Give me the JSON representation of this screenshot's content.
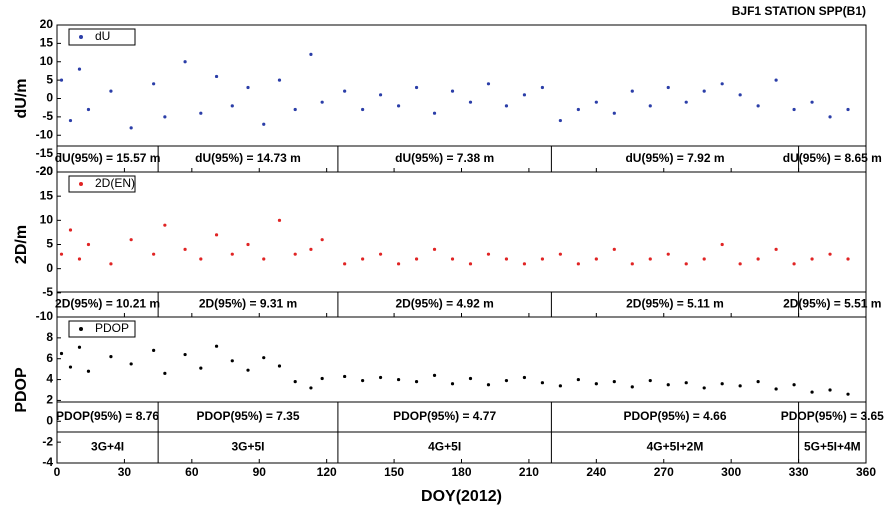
{
  "chart_data": [
    {
      "type": "scatter",
      "title": "BJF1 STATION SPP(B1)",
      "ylabel": "dU/m",
      "xlim": [
        0,
        360
      ],
      "ylim": [
        -20,
        20
      ],
      "yticks": [
        -20,
        -15,
        -10,
        -5,
        0,
        5,
        10,
        15,
        20
      ],
      "dividers": [
        45,
        125,
        220,
        330
      ],
      "annotations": [
        "dU(95%) = 15.57 m",
        "dU(95%) = 14.73 m",
        "dU(95%) = 7.38 m",
        "dU(95%) = 7.92 m",
        "dU(95%) = 8.65 m"
      ],
      "series": [
        {
          "name": "dU",
          "color": "#2b3ea8",
          "x": [
            2,
            6,
            10,
            14,
            24,
            33,
            43,
            48,
            57,
            64,
            71,
            78,
            85,
            92,
            99,
            106,
            113,
            118,
            128,
            136,
            144,
            152,
            160,
            168,
            176,
            184,
            192,
            200,
            208,
            216,
            224,
            232,
            240,
            248,
            256,
            264,
            272,
            280,
            288,
            296,
            304,
            312,
            320,
            328,
            336,
            344,
            352
          ],
          "values": [
            5,
            -6,
            8,
            -3,
            2,
            -8,
            4,
            -5,
            10,
            -4,
            6,
            -2,
            3,
            -7,
            5,
            -3,
            12,
            -1,
            2,
            -3,
            1,
            -2,
            3,
            -4,
            2,
            -1,
            4,
            -2,
            1,
            3,
            -6,
            -3,
            -1,
            -4,
            2,
            -2,
            3,
            -1,
            2,
            4,
            1,
            -2,
            5,
            -3,
            -1,
            -5,
            -3
          ]
        }
      ]
    },
    {
      "type": "scatter",
      "ylabel": "2D/m",
      "xlim": [
        0,
        360
      ],
      "ylim": [
        -10,
        20
      ],
      "yticks": [
        -10,
        -5,
        0,
        5,
        10,
        15,
        20
      ],
      "dividers": [
        45,
        125,
        220,
        330
      ],
      "annotations": [
        "2D(95%) = 10.21 m",
        "2D(95%) = 9.31 m",
        "2D(95%) = 4.92 m",
        "2D(95%) = 5.11 m",
        "2D(95%) = 5.51 m"
      ],
      "series": [
        {
          "name": "2D(EN)",
          "color": "#e02424",
          "x": [
            2,
            6,
            10,
            14,
            24,
            33,
            43,
            48,
            57,
            64,
            71,
            78,
            85,
            92,
            99,
            106,
            113,
            118,
            128,
            136,
            144,
            152,
            160,
            168,
            176,
            184,
            192,
            200,
            208,
            216,
            224,
            232,
            240,
            248,
            256,
            264,
            272,
            280,
            288,
            296,
            304,
            312,
            320,
            328,
            336,
            344,
            352
          ],
          "values": [
            3,
            8,
            2,
            5,
            1,
            6,
            3,
            9,
            4,
            2,
            7,
            3,
            5,
            2,
            10,
            3,
            4,
            6,
            1,
            2,
            3,
            1,
            2,
            4,
            2,
            1,
            3,
            2,
            1,
            2,
            3,
            1,
            2,
            4,
            1,
            2,
            3,
            1,
            2,
            5,
            1,
            2,
            4,
            1,
            2,
            3,
            2
          ]
        }
      ]
    },
    {
      "type": "scatter",
      "ylabel": "PDOP",
      "xlabel": "DOY(2012)",
      "xlim": [
        0,
        360
      ],
      "xticks": [
        0,
        30,
        60,
        90,
        120,
        150,
        180,
        210,
        240,
        270,
        300,
        330,
        360
      ],
      "ylim": [
        -4,
        10
      ],
      "yticks": [
        -4,
        -2,
        0,
        2,
        4,
        6,
        8
      ],
      "dividers": [
        45,
        125,
        220,
        330
      ],
      "annotations": [
        "PDOP(95%) = 8.76",
        "PDOP(95%) = 7.35",
        "PDOP(95%) = 4.77",
        "PDOP(95%) = 4.66",
        "PDOP(95%) = 3.65"
      ],
      "segment_labels": [
        "3G+4I",
        "3G+5I",
        "4G+5I",
        "4G+5I+2M",
        "5G+5I+4M"
      ],
      "series": [
        {
          "name": "PDOP",
          "color": "#000000",
          "x": [
            2,
            6,
            10,
            14,
            24,
            33,
            43,
            48,
            57,
            64,
            71,
            78,
            85,
            92,
            99,
            106,
            113,
            118,
            128,
            136,
            144,
            152,
            160,
            168,
            176,
            184,
            192,
            200,
            208,
            216,
            224,
            232,
            240,
            248,
            256,
            264,
            272,
            280,
            288,
            296,
            304,
            312,
            320,
            328,
            336,
            344,
            352
          ],
          "values": [
            6.5,
            5.2,
            7.1,
            4.8,
            6.2,
            5.5,
            6.8,
            4.6,
            6.4,
            5.1,
            7.2,
            5.8,
            4.9,
            6.1,
            5.3,
            3.8,
            3.2,
            4.1,
            4.3,
            3.9,
            4.2,
            4.0,
            3.8,
            4.4,
            3.6,
            4.1,
            3.5,
            3.9,
            4.2,
            3.7,
            3.4,
            4.0,
            3.6,
            3.8,
            3.3,
            3.9,
            3.5,
            3.7,
            3.2,
            3.6,
            3.4,
            3.8,
            3.1,
            3.5,
            2.8,
            3.0,
            2.6
          ]
        }
      ]
    }
  ]
}
